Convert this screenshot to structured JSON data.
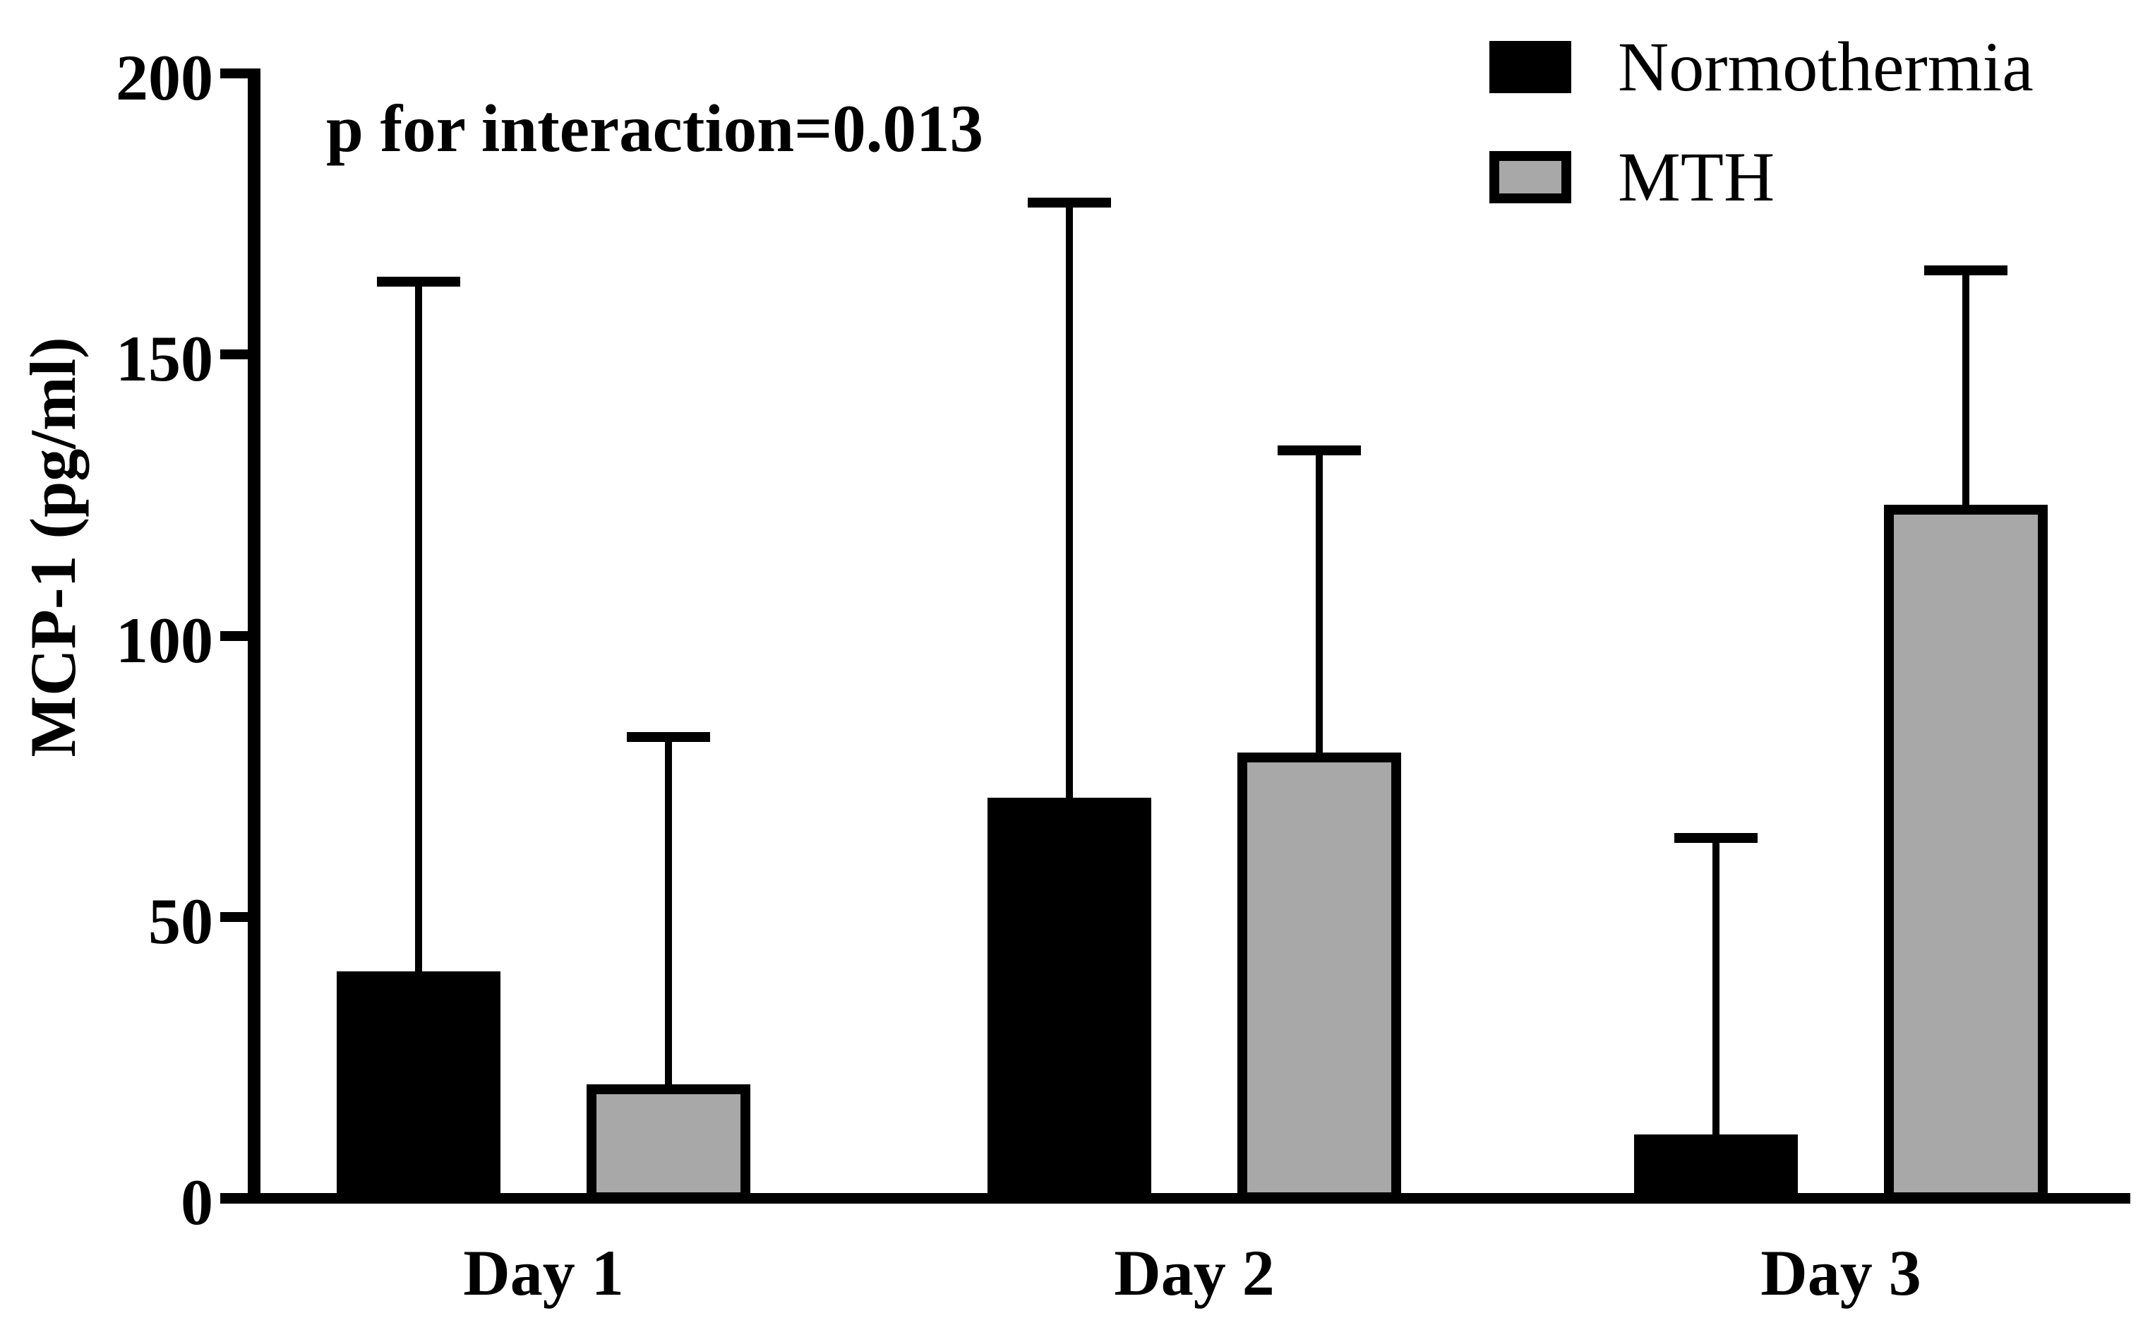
{
  "chart_data": {
    "type": "bar",
    "title": "",
    "annotation": "p for interaction=0.013",
    "ylabel": "MCP-1 (pg/ml)",
    "xlabel": "",
    "categories": [
      "Day 1",
      "Day 2",
      "Day 3"
    ],
    "series": [
      {
        "name": "Normothermia",
        "color": "#000000",
        "values": [
          41,
          72,
          12
        ],
        "error_tops": [
          163,
          177,
          64
        ]
      },
      {
        "name": "MTH",
        "color": "#a8a8a8",
        "values": [
          21,
          80,
          124
        ],
        "error_tops": [
          82,
          133,
          165
        ]
      }
    ],
    "ylim": [
      0,
      200
    ],
    "yticks": [
      0,
      50,
      100,
      150,
      200
    ],
    "grid": false,
    "legend_position": "top-right",
    "error_bars": "upper only, capped",
    "bar_border_color": "#000000",
    "background_color": "#ffffff"
  }
}
